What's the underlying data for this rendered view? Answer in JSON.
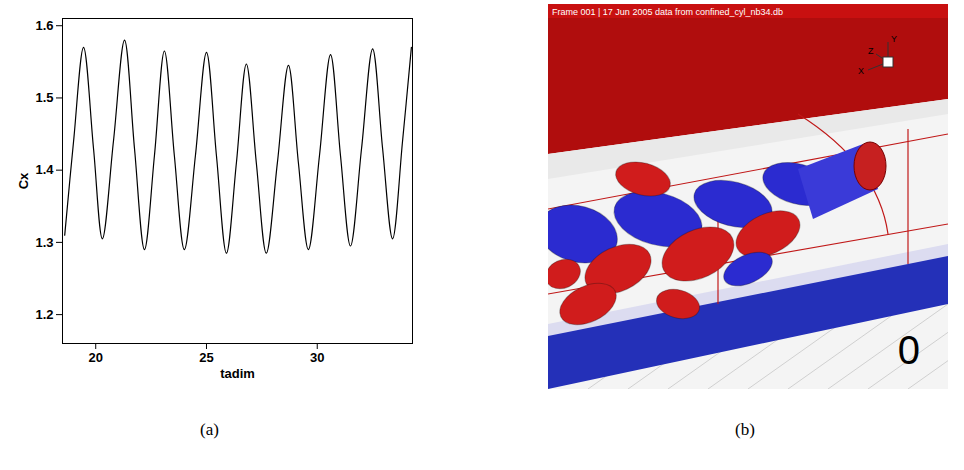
{
  "chart_data": {
    "type": "line",
    "x_label": "tadim",
    "y_label": "Cx",
    "x": [
      18.6,
      19.0,
      19.45,
      19.9,
      20.3,
      20.8,
      21.3,
      21.75,
      22.2,
      22.65,
      23.1,
      23.55,
      24.0,
      24.5,
      25.0,
      25.45,
      25.9,
      26.35,
      26.8,
      27.25,
      27.7,
      28.2,
      28.7,
      29.15,
      29.6,
      30.1,
      30.6,
      31.05,
      31.5,
      32.0,
      32.5,
      32.95,
      33.4,
      33.85,
      34.25
    ],
    "series": [
      {
        "name": "Cx",
        "color": "#000000",
        "values": [
          1.31,
          1.44,
          1.57,
          1.43,
          1.305,
          1.44,
          1.58,
          1.43,
          1.29,
          1.42,
          1.565,
          1.42,
          1.29,
          1.42,
          1.563,
          1.42,
          1.285,
          1.41,
          1.547,
          1.41,
          1.285,
          1.41,
          1.545,
          1.41,
          1.29,
          1.42,
          1.56,
          1.42,
          1.295,
          1.43,
          1.568,
          1.43,
          1.305,
          1.44,
          1.57
        ]
      }
    ],
    "xlim": [
      18.5,
      34.3
    ],
    "xticks": [
      20,
      25,
      30
    ],
    "ylim": [
      1.16,
      1.61
    ],
    "yticks": [
      1.2,
      1.3,
      1.4,
      1.5,
      1.6
    ],
    "grid": false
  },
  "panel_b": {
    "header": "Frame 001 | 17 Jun 2005    data from confined_cyl_nb34.db",
    "axis_labels": [
      "Y",
      "Z",
      "X"
    ],
    "frame_label": "0"
  },
  "captions": [
    "(a)",
    "(b)"
  ]
}
